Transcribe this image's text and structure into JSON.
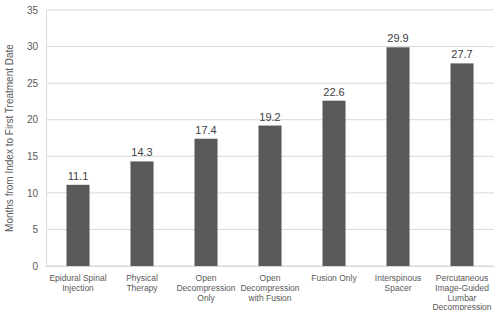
{
  "chart_data": {
    "type": "bar",
    "ylabel": "Months from Index to First Treatment Date",
    "categories": [
      "Epidural Spinal Injection",
      "Physical Therapy",
      "Open Decompression Only",
      "Open Decompression with Fusion",
      "Fusion Only",
      "Interspinous Spacer",
      "Percutaneous Image-Guided Lumbar Decompression"
    ],
    "values": [
      11.1,
      14.3,
      17.4,
      19.2,
      22.6,
      29.9,
      27.7
    ],
    "color": "#595959",
    "ylim": [
      0,
      35
    ],
    "yticks": [
      0,
      5,
      10,
      15,
      20,
      25,
      30,
      35
    ],
    "grid": true,
    "data_labels": true
  }
}
